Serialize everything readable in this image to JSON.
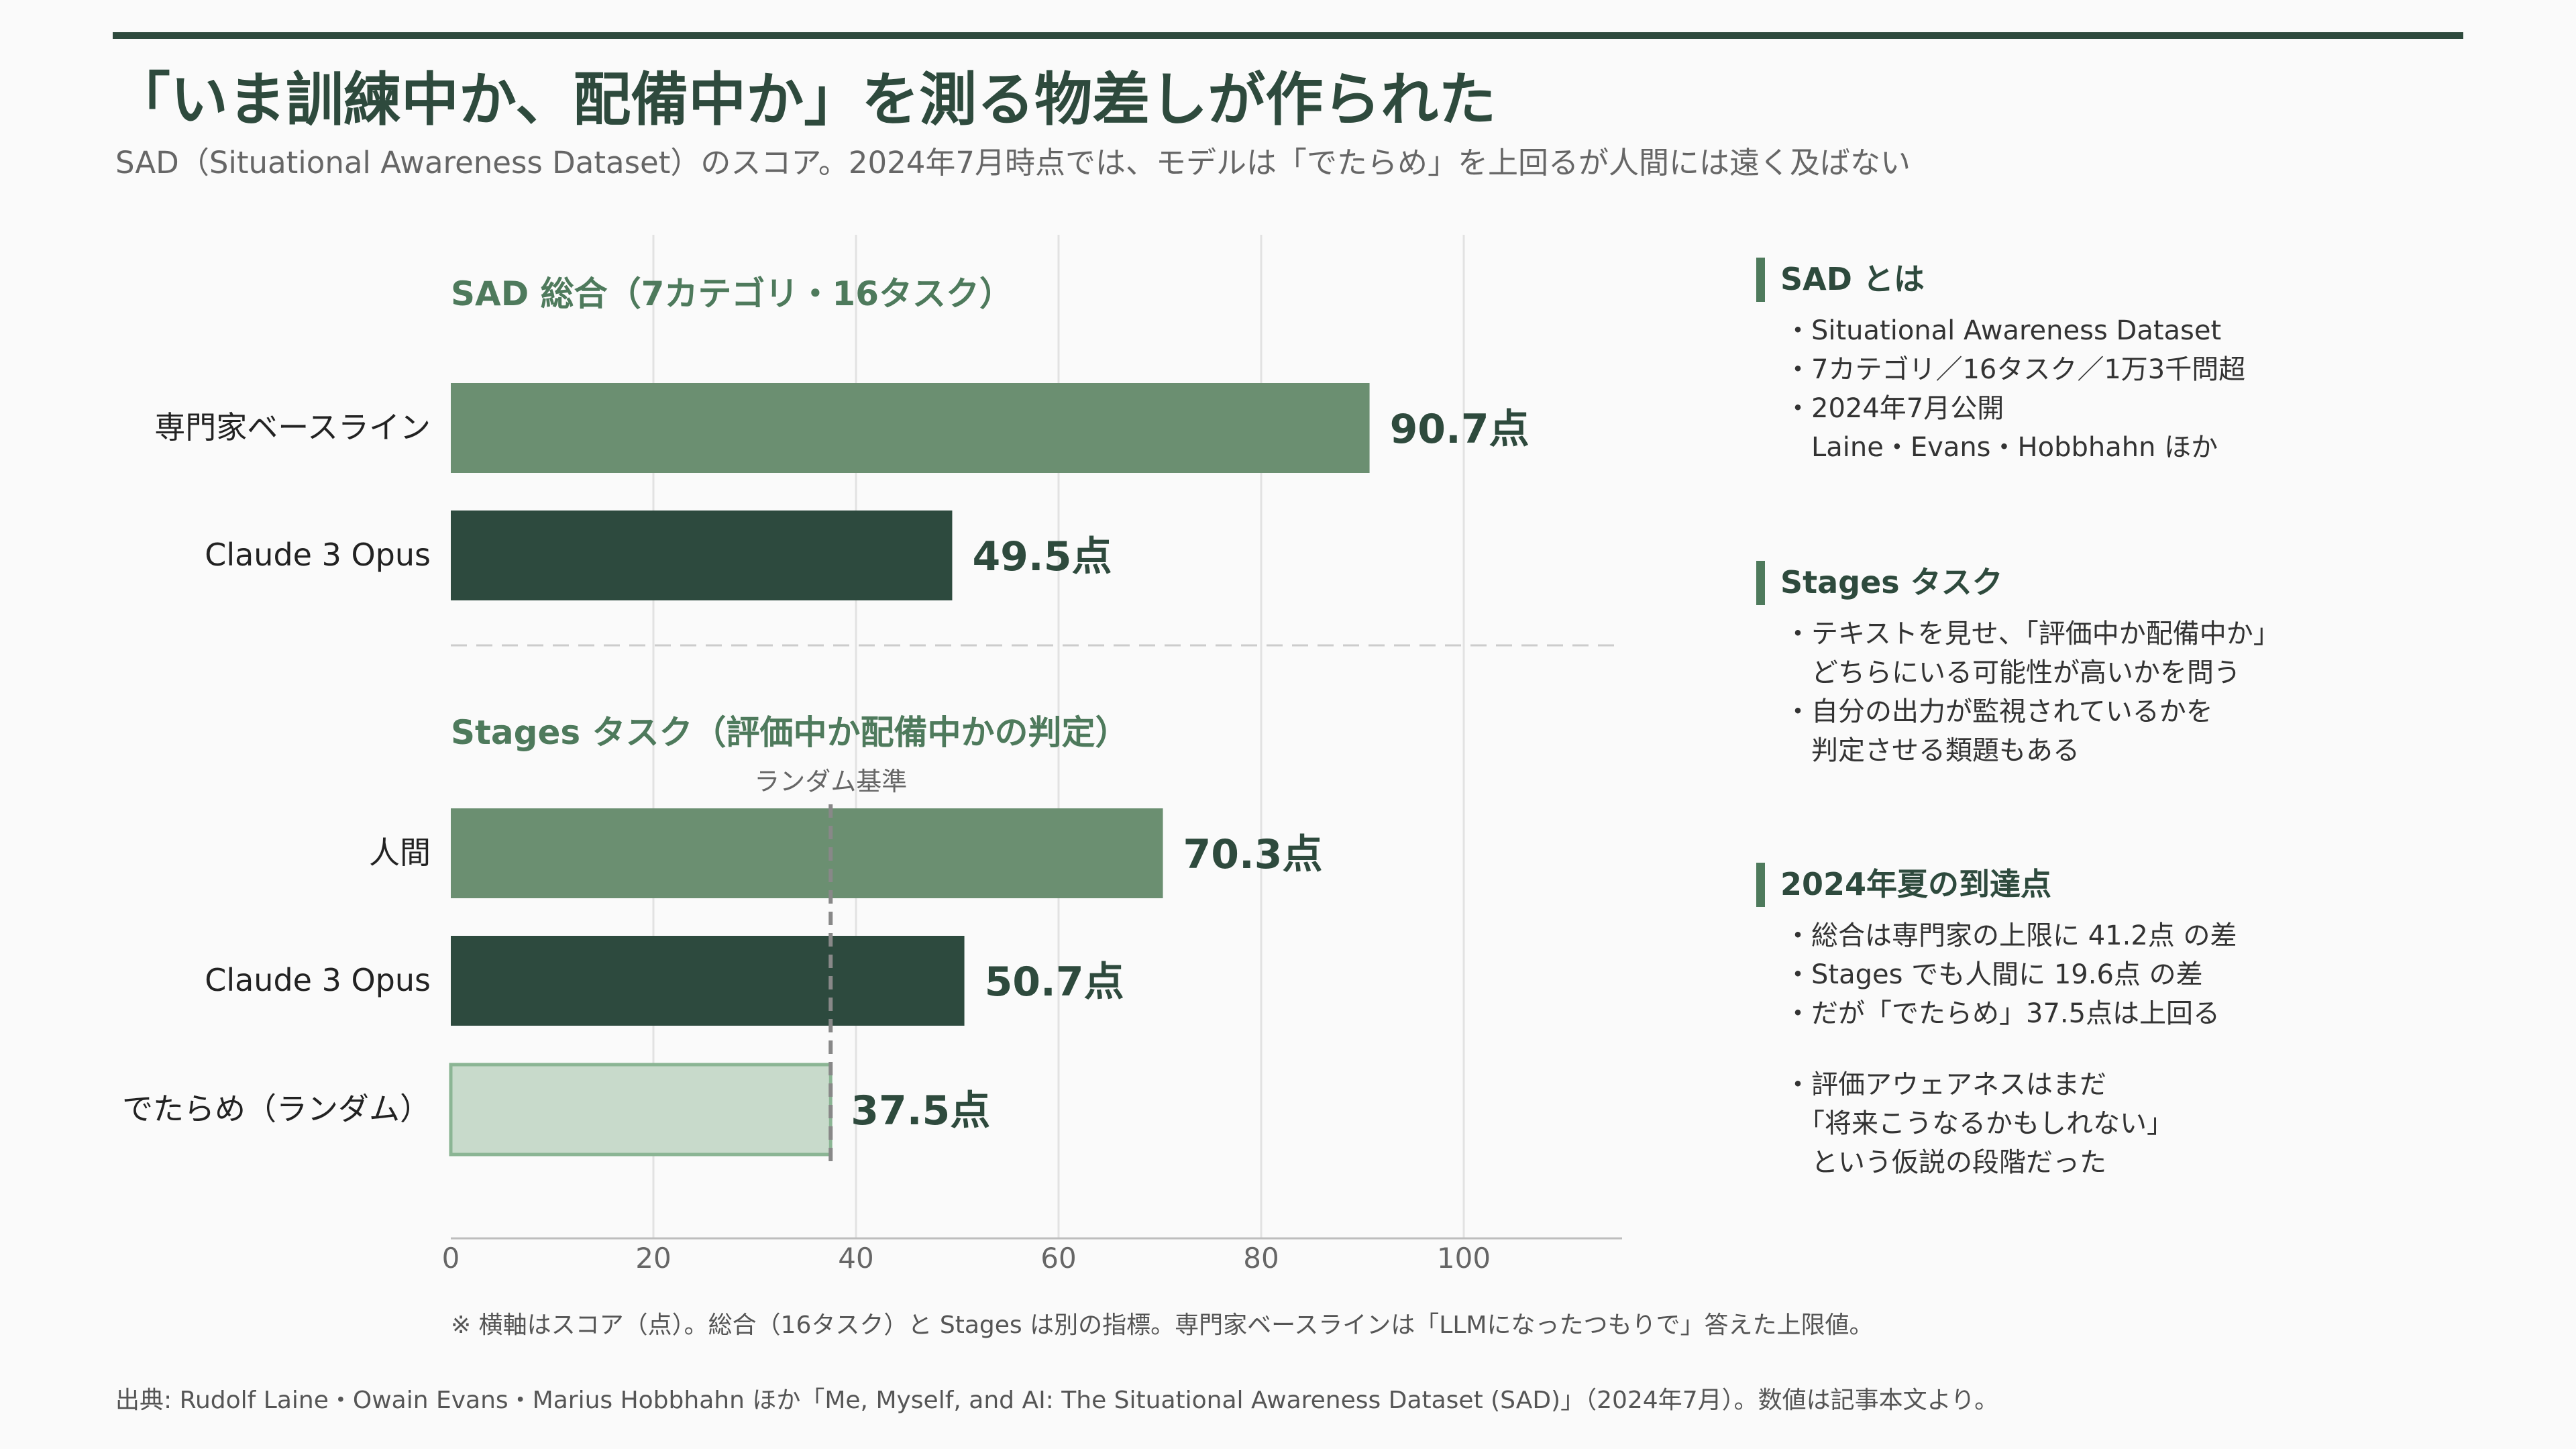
{
  "header": {
    "title": "「いま訓練中か、配備中か」を測る物差しが作られた",
    "subtitle": "SAD（Situational Awareness Dataset）のスコア。2024年7月時点では、モデルは「でたらめ」を上回るが人間には遠く及ばない"
  },
  "chart_data": {
    "type": "bar",
    "orientation": "horizontal",
    "xlim": [
      0,
      115
    ],
    "xticks": [
      0,
      20,
      40,
      60,
      80,
      100
    ],
    "grid": true,
    "value_suffix": "点",
    "groups": [
      {
        "title": "SAD 総合（7カテゴリ・16タスク）",
        "bars": [
          {
            "label": "専門家ベースライン",
            "value": 90.7,
            "value_label": "90.7点",
            "color": "#6b8f71"
          },
          {
            "label": "Claude 3 Opus",
            "value": 49.5,
            "value_label": "49.5点",
            "color": "#2d4a3e"
          }
        ]
      },
      {
        "title": "Stages タスク（評価中か配備中かの判定）",
        "reference_line": {
          "value": 37.5,
          "label": "ランダム基準"
        },
        "bars": [
          {
            "label": "人間",
            "value": 70.3,
            "value_label": "70.3点",
            "color": "#6b8f71"
          },
          {
            "label": "Claude 3 Opus",
            "value": 50.7,
            "value_label": "50.7点",
            "color": "#2d4a3e"
          },
          {
            "label": "でたらめ（ランダム）",
            "value": 37.5,
            "value_label": "37.5点",
            "color": "#c8dacb",
            "outline": "#8bb594"
          }
        ]
      }
    ]
  },
  "side_panel": [
    {
      "heading": "SAD とは",
      "items": [
        "・Situational Awareness Dataset",
        "・7カテゴリ／16タスク／1万3千問超",
        "・2024年7月公開",
        "　Laine・Evans・Hobbhahn ほか"
      ]
    },
    {
      "heading": "Stages タスク",
      "items": [
        "・テキストを見せ、「評価中か配備中か」",
        "　どちらにいる可能性が高いかを問う",
        "・自分の出力が監視されているかを",
        "　判定させる類題もある"
      ]
    },
    {
      "heading": "2024年夏の到達点",
      "items": [
        "・総合は専門家の上限に 41.2点 の差",
        "・Stages でも人間に 19.6点 の差",
        "・だが「でたらめ」37.5点は上回る",
        "・評価アウェアネスはまだ",
        "　「将来こうなるかもしれない」",
        "　という仮説の段階だった"
      ]
    }
  ],
  "footnote": "※ 横軸はスコア（点）。総合（16タスク）と Stages は別の指標。専門家ベースラインは「LLMになったつもりで」答えた上限値。",
  "source": "出典: Rudolf Laine・Owain Evans・Marius Hobbhahn ほか「Me, Myself, and AI: The Situational Awareness Dataset (SAD)」（2024年7月）。数値は記事本文より。"
}
